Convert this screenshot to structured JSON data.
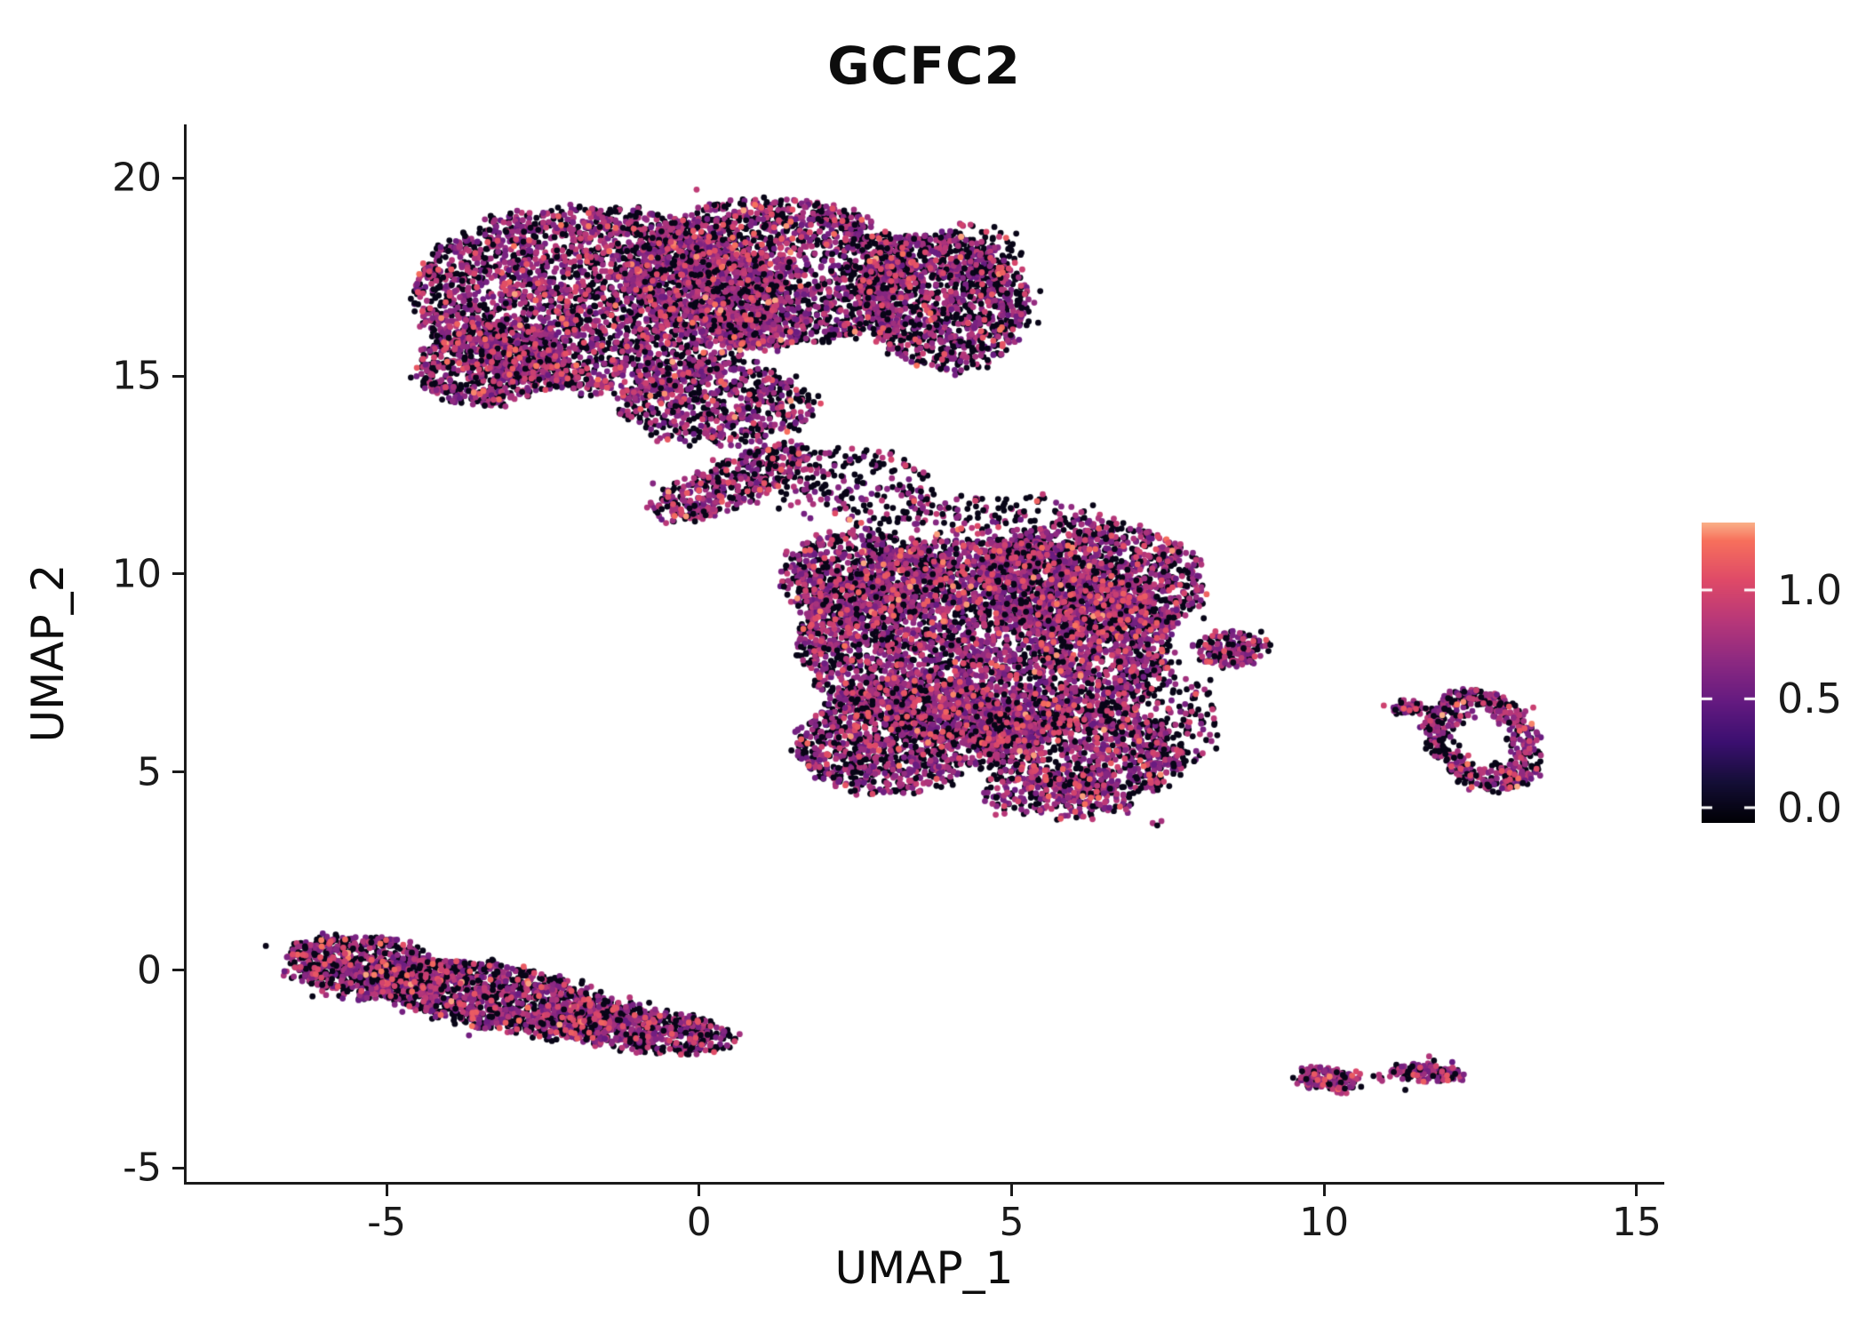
{
  "title": "GCFC2",
  "chart_data": {
    "type": "scatter",
    "subtype": "umap-feature-plot",
    "title": "GCFC2",
    "xlabel": "UMAP_1",
    "ylabel": "UMAP_2",
    "x_ticks": [
      -5,
      0,
      5,
      10,
      15
    ],
    "y_ticks": [
      -5,
      0,
      5,
      10,
      15,
      20
    ],
    "xlim": [
      -8.2,
      15.4
    ],
    "ylim": [
      -5.35,
      21.35
    ],
    "grid": false,
    "background": "#ffffff",
    "axis_color": "#1a1a1a",
    "text_color": "#0d0d0d",
    "point_color_zero": "#080517",
    "point_color_mid": "#b03579",
    "point_color_high": "#f08a5c",
    "legend": {
      "type": "colorbar",
      "position": "right",
      "colormap": "magma",
      "colormap_stops": [
        "#000004",
        "#140e36",
        "#3b0f70",
        "#641a80",
        "#8c2981",
        "#b73779",
        "#de4968",
        "#f7705c",
        "#fcfdbf"
      ],
      "vmin": -0.07,
      "vmax": 1.31,
      "ticks": [
        {
          "label": "1.0",
          "value": 1.0
        },
        {
          "label": "0.5",
          "value": 0.5
        },
        {
          "label": "0.0",
          "value": 0.0
        }
      ]
    },
    "clusters": [
      {
        "name": "top-left-main",
        "cx": -1.6,
        "cy": 16.9,
        "rx": 3.0,
        "ry": 2.35,
        "rot": -8,
        "n": 3200,
        "zero_frac": 0.43
      },
      {
        "name": "top-mid",
        "cx": 1.2,
        "cy": 17.6,
        "rx": 2.2,
        "ry": 1.9,
        "rot": 0,
        "n": 2000,
        "zero_frac": 0.45
      },
      {
        "name": "top-right-lobe",
        "cx": 3.9,
        "cy": 16.9,
        "rx": 1.35,
        "ry": 1.75,
        "rot": 8,
        "n": 1200,
        "zero_frac": 0.47
      },
      {
        "name": "top-left-bulge",
        "cx": -3.3,
        "cy": 15.3,
        "rx": 1.25,
        "ry": 1.0,
        "rot": 25,
        "n": 650,
        "zero_frac": 0.45
      },
      {
        "name": "top-bottom-ext",
        "cx": 0.3,
        "cy": 14.3,
        "rx": 1.6,
        "ry": 1.0,
        "rot": 0,
        "n": 600,
        "zero_frac": 0.45
      },
      {
        "name": "top-right-fringe",
        "cx": 4.4,
        "cy": 17.9,
        "rx": 0.8,
        "ry": 1.0,
        "rot": 0,
        "n": 140,
        "zero_frac": 0.6
      },
      {
        "name": "top-tail",
        "cx": 0.5,
        "cy": 12.3,
        "rx": 1.5,
        "ry": 0.55,
        "rot": 35,
        "n": 450,
        "zero_frac": 0.42
      },
      {
        "name": "bridge",
        "cx": 2.5,
        "cy": 12.2,
        "rx": 1.3,
        "ry": 1.0,
        "rot": -10,
        "n": 220,
        "zero_frac": 0.52
      },
      {
        "name": "mid-top-fringe",
        "cx": 5.0,
        "cy": 11.3,
        "rx": 1.8,
        "ry": 0.7,
        "rot": 0,
        "n": 180,
        "zero_frac": 0.55
      },
      {
        "name": "mid-main",
        "cx": 4.6,
        "cy": 8.3,
        "rx": 3.0,
        "ry": 2.6,
        "rot": 0,
        "n": 4200,
        "zero_frac": 0.42
      },
      {
        "name": "mid-top-right",
        "cx": 6.3,
        "cy": 9.8,
        "rx": 1.8,
        "ry": 1.5,
        "rot": 0,
        "n": 1300,
        "zero_frac": 0.42
      },
      {
        "name": "mid-left",
        "cx": 2.6,
        "cy": 9.9,
        "rx": 1.3,
        "ry": 1.2,
        "rot": 0,
        "n": 700,
        "zero_frac": 0.44
      },
      {
        "name": "mid-bottom-left",
        "cx": 3.3,
        "cy": 5.9,
        "rx": 1.8,
        "ry": 1.4,
        "rot": 20,
        "n": 1200,
        "zero_frac": 0.45
      },
      {
        "name": "mid-bottom-right",
        "cx": 6.1,
        "cy": 5.6,
        "rx": 1.7,
        "ry": 1.15,
        "rot": -15,
        "n": 950,
        "zero_frac": 0.45
      },
      {
        "name": "mid-bottom-tail",
        "cx": 5.7,
        "cy": 4.4,
        "rx": 1.2,
        "ry": 0.6,
        "rot": -10,
        "n": 250,
        "zero_frac": 0.45
      },
      {
        "name": "mid-right-nub",
        "cx": 8.5,
        "cy": 8.1,
        "rx": 0.6,
        "ry": 0.45,
        "rot": 0,
        "n": 160,
        "zero_frac": 0.4
      },
      {
        "name": "mid-right-fringe",
        "cx": 7.6,
        "cy": 6.3,
        "rx": 0.7,
        "ry": 1.2,
        "rot": 0,
        "n": 150,
        "zero_frac": 0.6
      },
      {
        "name": "mid-lone-dot",
        "cx": 7.3,
        "cy": 3.7,
        "rx": 0.06,
        "ry": 0.05,
        "rot": 0,
        "n": 3,
        "zero_frac": 0.6
      },
      {
        "name": "left-strip-head",
        "cx": -5.3,
        "cy": 0.05,
        "rx": 1.35,
        "ry": 0.75,
        "rot": -14,
        "n": 800,
        "zero_frac": 0.48
      },
      {
        "name": "left-strip-mid",
        "cx": -3.2,
        "cy": -0.7,
        "rx": 2.2,
        "ry": 0.8,
        "rot": -16,
        "n": 1300,
        "zero_frac": 0.48
      },
      {
        "name": "left-strip-tail",
        "cx": -1.0,
        "cy": -1.45,
        "rx": 1.6,
        "ry": 0.55,
        "rot": -12,
        "n": 700,
        "zero_frac": 0.48
      },
      {
        "name": "right-ring",
        "cx": 12.55,
        "cy": 5.8,
        "rx": 0.85,
        "ry": 1.3,
        "rot": 18,
        "n": 560,
        "zero_frac": 0.45,
        "ring": 0.45
      },
      {
        "name": "right-ring-satellite",
        "cx": 11.35,
        "cy": 6.65,
        "rx": 0.3,
        "ry": 0.14,
        "rot": 0,
        "n": 50,
        "zero_frac": 0.5
      },
      {
        "name": "bottom-small-1",
        "cx": 10.05,
        "cy": -2.75,
        "rx": 0.5,
        "ry": 0.28,
        "rot": -10,
        "n": 170,
        "zero_frac": 0.38
      },
      {
        "name": "bottom-small-2",
        "cx": 11.65,
        "cy": -2.6,
        "rx": 0.65,
        "ry": 0.17,
        "rot": -5,
        "n": 140,
        "zero_frac": 0.38
      },
      {
        "name": "bottom-small-mid-dot",
        "cx": 10.9,
        "cy": -2.7,
        "rx": 0.07,
        "ry": 0.05,
        "rot": 0,
        "n": 5,
        "zero_frac": 0.5
      }
    ]
  }
}
